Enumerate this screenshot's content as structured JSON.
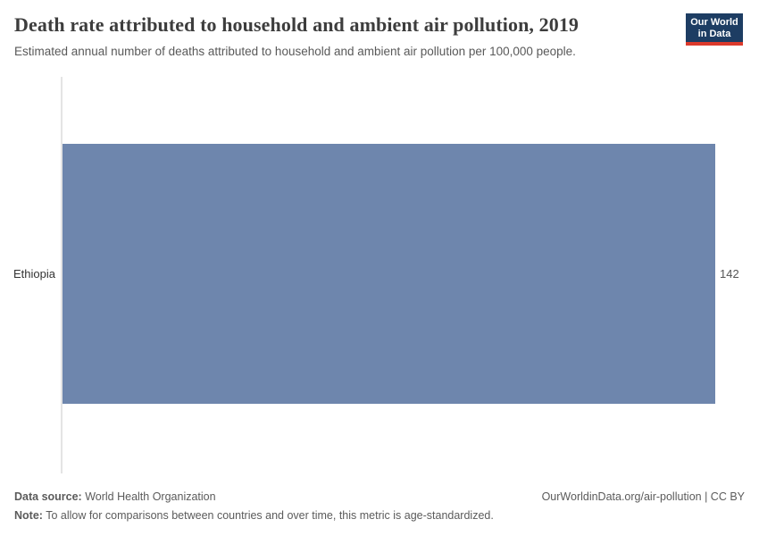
{
  "header": {
    "title": "Death rate attributed to household and ambient air pollution, 2019",
    "subtitle": "Estimated annual number of deaths attributed to household and ambient air pollution per 100,000 people.",
    "logo": {
      "line1": "Our World",
      "line2": "in Data",
      "background_color": "#1d3d63",
      "stripe_color": "#dc3a2c"
    }
  },
  "chart_data": {
    "type": "bar",
    "orientation": "horizontal",
    "title": "Death rate attributed to household and ambient air pollution, 2019",
    "subtitle": "Estimated annual number of deaths attributed to household and ambient air pollution per 100,000 people.",
    "categories": [
      "Ethiopia"
    ],
    "values": [
      142
    ],
    "value_labels": [
      "142"
    ],
    "year": "2019",
    "xlabel": "",
    "ylabel": "",
    "xlim": [
      0,
      142
    ],
    "grid": false,
    "legend": false,
    "bar_color": "#6e86ad",
    "axis_line_color": "#e4e4e4"
  },
  "footer": {
    "data_source_label": "Data source:",
    "data_source_text": " World Health Organization",
    "note_label": "Note:",
    "note_text": " To allow for comparisons between countries and over time, this metric is age-standardized.",
    "attribution": "OurWorldinData.org/air-pollution | CC BY"
  }
}
